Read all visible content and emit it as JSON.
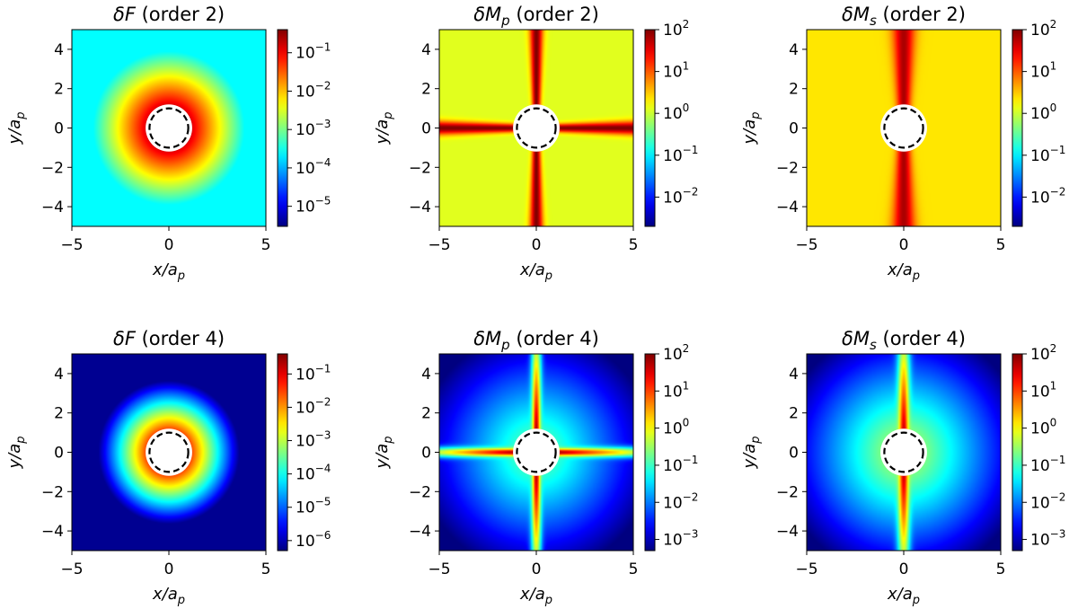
{
  "figure": {
    "rows": 2,
    "cols": 3
  },
  "chart_data": [
    {
      "type": "heatmap",
      "title": "δF (order 2)",
      "title_sym": "δF",
      "title_sub": "",
      "title_suffix": " (order 2)",
      "xlabel": "x/a_p",
      "ylabel": "y/a_p",
      "xlim": [
        -5,
        5
      ],
      "ylim": [
        -5,
        5
      ],
      "xticks": [
        -5,
        0,
        5
      ],
      "yticks": [
        -4,
        -2,
        0,
        2,
        4
      ],
      "colormap": "jet",
      "color_scale": "log",
      "colorbar_range": [
        3e-06,
        0.4
      ],
      "colorbar_ticks": [
        "10^-1",
        "10^-2",
        "10^-3",
        "10^-4",
        "10^-5"
      ],
      "field": "radial",
      "field_params": {
        "peak": -0.7,
        "decay": 1.0,
        "floor": -3.6
      },
      "annotation": "dashed circle of radius 1 at origin"
    },
    {
      "type": "heatmap",
      "title": "δMp (order 2)",
      "title_sym": "δM",
      "title_sub": "p",
      "title_suffix": " (order 2)",
      "xlabel": "x/a_p",
      "ylabel": "y/a_p",
      "xlim": [
        -5,
        5
      ],
      "ylim": [
        -5,
        5
      ],
      "xticks": [
        -5,
        0,
        5
      ],
      "yticks": [
        -4,
        -2,
        0,
        2,
        4
      ],
      "colormap": "jet",
      "color_scale": "log",
      "colorbar_range": [
        0.002,
        100
      ],
      "colorbar_ticks": [
        "10^2",
        "10^1",
        "10^0",
        "10^-1",
        "10^-2"
      ],
      "field": "cross",
      "field_params": {
        "base": 0.1,
        "ridge": 2.0,
        "width": 0.12,
        "xarm": true,
        "yarm": true
      },
      "annotation": "dashed circle of radius 1 at origin"
    },
    {
      "type": "heatmap",
      "title": "δMs (order 2)",
      "title_sym": "δM",
      "title_sub": "s",
      "title_suffix": " (order 2)",
      "xlabel": "x/a_p",
      "ylabel": "y/a_p",
      "xlim": [
        -5,
        5
      ],
      "ylim": [
        -5,
        5
      ],
      "xticks": [
        -5,
        0,
        5
      ],
      "yticks": [
        -4,
        -2,
        0,
        2,
        4
      ],
      "colormap": "jet",
      "color_scale": "log",
      "colorbar_range": [
        0.002,
        100
      ],
      "colorbar_ticks": [
        "10^2",
        "10^1",
        "10^0",
        "10^-1",
        "10^-2"
      ],
      "field": "cross",
      "field_params": {
        "base": 0.35,
        "ridge": 1.8,
        "width": 0.2,
        "xarm": false,
        "yarm": true
      },
      "annotation": "dashed circle of radius 1 at origin"
    },
    {
      "type": "heatmap",
      "title": "δF (order 4)",
      "title_sym": "δF",
      "title_sub": "",
      "title_suffix": " (order 4)",
      "xlabel": "x/a_p",
      "ylabel": "y/a_p",
      "xlim": [
        -5,
        5
      ],
      "ylim": [
        -5,
        5
      ],
      "xticks": [
        -5,
        0,
        5
      ],
      "yticks": [
        -4,
        -2,
        0,
        2,
        4
      ],
      "colormap": "jet",
      "color_scale": "log",
      "colorbar_range": [
        5e-07,
        0.4
      ],
      "colorbar_ticks": [
        "10^-1",
        "10^-2",
        "10^-3",
        "10^-4",
        "10^-5",
        "10^-6"
      ],
      "field": "radial",
      "field_params": {
        "peak": -1.2,
        "decay": 1.9,
        "floor": -6.2
      },
      "annotation": "dashed circle of radius 1 at origin"
    },
    {
      "type": "heatmap",
      "title": "δMp (order 4)",
      "title_sym": "δM",
      "title_sub": "p",
      "title_suffix": " (order 4)",
      "xlabel": "x/a_p",
      "ylabel": "y/a_p",
      "xlim": [
        -5,
        5
      ],
      "ylim": [
        -5,
        5
      ],
      "xticks": [
        -5,
        0,
        5
      ],
      "yticks": [
        -4,
        -2,
        0,
        2,
        4
      ],
      "colormap": "jet",
      "color_scale": "log",
      "colorbar_range": [
        0.0005,
        100
      ],
      "colorbar_ticks": [
        "10^2",
        "10^1",
        "10^0",
        "10^-1",
        "10^-2",
        "10^-3"
      ],
      "field": "cross4",
      "field_params": {
        "base": -1.0,
        "fall": 0.45,
        "ridge": 2.0,
        "width": 0.1,
        "xarm": true,
        "yarm": true
      },
      "annotation": "dashed circle of radius 1 at origin"
    },
    {
      "type": "heatmap",
      "title": "δMs (order 4)",
      "title_sym": "δM",
      "title_sub": "s",
      "title_suffix": " (order 4)",
      "xlabel": "x/a_p",
      "ylabel": "y/a_p",
      "xlim": [
        -5,
        5
      ],
      "ylim": [
        -5,
        5
      ],
      "xticks": [
        -5,
        0,
        5
      ],
      "yticks": [
        -4,
        -2,
        0,
        2,
        4
      ],
      "colormap": "jet",
      "color_scale": "log",
      "colorbar_range": [
        0.0005,
        100
      ],
      "colorbar_ticks": [
        "10^2",
        "10^1",
        "10^0",
        "10^-1",
        "10^-2",
        "10^-3"
      ],
      "field": "cross4",
      "field_params": {
        "base": -0.6,
        "fall": 0.5,
        "ridge": 1.8,
        "width": 0.12,
        "xarm": false,
        "yarm": true
      },
      "annotation": "dashed circle of radius 1 at origin"
    }
  ]
}
